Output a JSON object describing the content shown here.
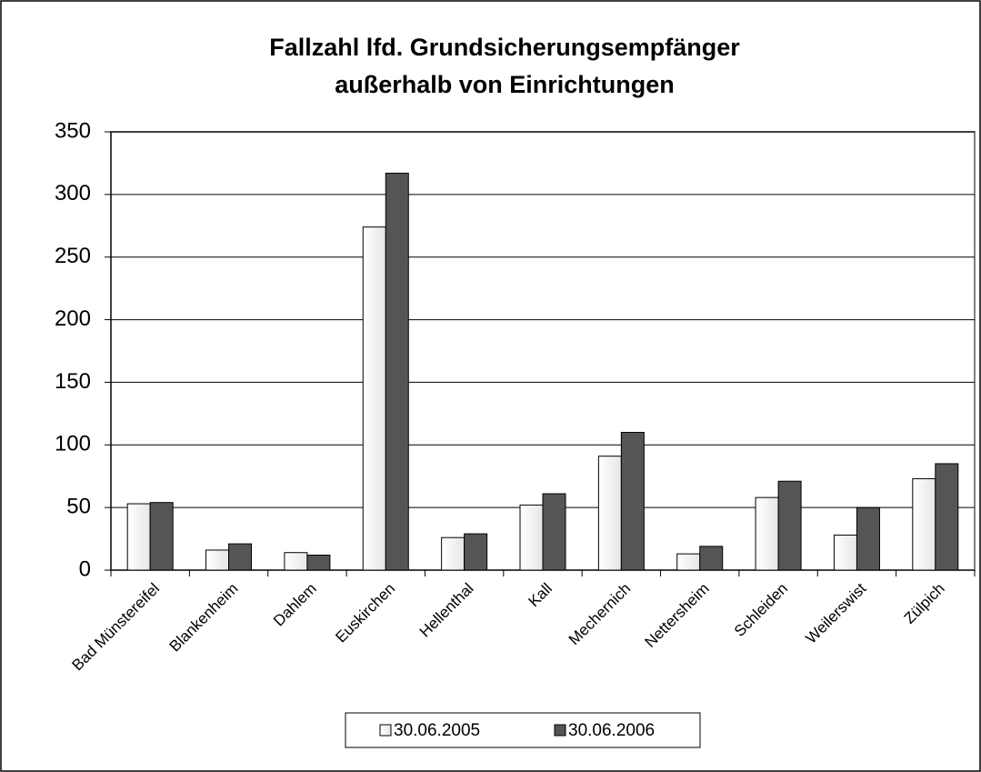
{
  "chart_data": {
    "type": "bar",
    "title": [
      "Fallzahl lfd. Grundsicherungsempfänger",
      "außerhalb von Einrichtungen"
    ],
    "categories": [
      "Bad Münstereifel",
      "Blankenheim",
      "Dahlem",
      "Euskirchen",
      "Hellenthal",
      "Kall",
      "Mechernich",
      "Nettersheim",
      "Schleiden",
      "Weilerswist",
      "Zülpich"
    ],
    "series": [
      {
        "name": "30.06.2005",
        "color": "#f2f2f2",
        "values": [
          53,
          16,
          14,
          274,
          26,
          52,
          91,
          13,
          58,
          28,
          73
        ]
      },
      {
        "name": "30.06.2006",
        "color": "#555555",
        "values": [
          54,
          21,
          12,
          317,
          29,
          61,
          110,
          19,
          71,
          50,
          85
        ]
      }
    ],
    "ylim": [
      0,
      350
    ],
    "yticks": [
      0,
      50,
      100,
      150,
      200,
      250,
      300,
      350
    ],
    "grid": true,
    "legend": "bottom"
  }
}
